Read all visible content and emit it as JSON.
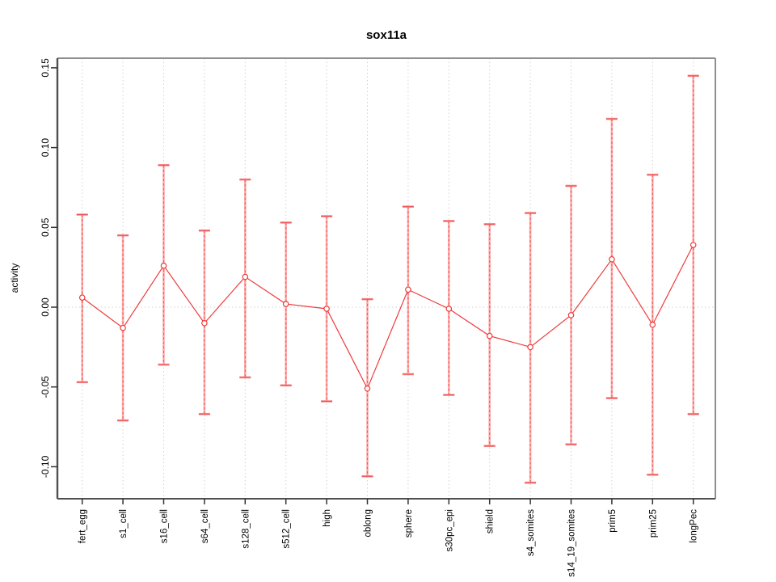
{
  "chart_data": {
    "type": "line",
    "subtype": "points-with-error-bars",
    "title": "sox11a",
    "xlabel": "",
    "ylabel": "activity",
    "legend": "none",
    "grid": {
      "vertical_dotted_per_category": true,
      "horizontal_dotted_at_zero": true
    },
    "categories": [
      "fert_egg",
      "s1_cell",
      "s16_cell",
      "s64_cell",
      "s128_cell",
      "s512_cell",
      "high",
      "oblong",
      "sphere",
      "s30pc_epi",
      "shield",
      "s4_somites",
      "s14_19_somites",
      "prim5",
      "prim25",
      "longPec"
    ],
    "series": [
      {
        "name": "sox11a activity",
        "values": [
          0.006,
          -0.013,
          0.026,
          -0.01,
          0.019,
          0.002,
          -0.001,
          -0.051,
          0.011,
          -0.001,
          -0.018,
          -0.025,
          -0.005,
          0.03,
          -0.011,
          0.039
        ],
        "upper": [
          0.058,
          0.045,
          0.089,
          0.048,
          0.08,
          0.053,
          0.057,
          0.005,
          0.063,
          0.054,
          0.052,
          0.059,
          0.076,
          0.118,
          0.083,
          0.145
        ],
        "lower": [
          -0.047,
          -0.071,
          -0.036,
          -0.067,
          -0.044,
          -0.049,
          -0.059,
          -0.106,
          -0.042,
          -0.055,
          -0.087,
          -0.11,
          -0.086,
          -0.057,
          -0.105,
          -0.067
        ]
      }
    ],
    "y_ticks": [
      0.15,
      0.1,
      0.05,
      0.0,
      -0.05,
      -0.1
    ],
    "y_tick_labels": [
      "0.15",
      "0.10",
      "0.05",
      "0.00",
      "-0.05",
      "-0.10"
    ],
    "ylim": [
      -0.12,
      0.156
    ]
  },
  "colors": {
    "stem_pink": "#ffa6a6",
    "stem_dash_red": "#e84e4e",
    "cap_pink": "#f88080",
    "cap_red": "#ea4343",
    "series_red": "#ee3b3b",
    "point_fill": "#ffffff",
    "grid_gray": "#d2d2d2",
    "box_gray": "#8f8f8f",
    "box_dark": "#4f4f4f",
    "tick_color": "#333333",
    "text_color": "#000000"
  }
}
